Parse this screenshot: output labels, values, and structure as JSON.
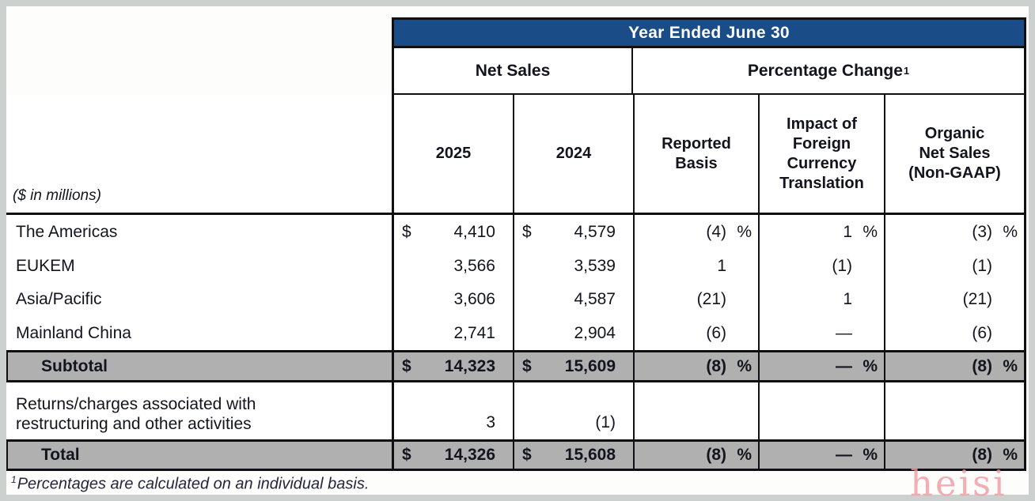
{
  "banner": "Year Ended June 30",
  "groups": {
    "net_sales": "Net Sales",
    "pct_change": "Percentage Change",
    "pct_sup": "1"
  },
  "columns": {
    "y2025": "2025",
    "y2024": "2024",
    "reported": "Reported\nBasis",
    "fx": "Impact of\nForeign\nCurrency\nTranslation",
    "organic": "Organic\nNet Sales\n(Non-GAAP)"
  },
  "units_note": "($ in millions)",
  "table": {
    "rows": [
      {
        "label": "The Americas",
        "ns2025": {
          "cur": "$",
          "val": "4,410"
        },
        "ns2024": {
          "cur": "$",
          "val": "4,579"
        },
        "rep": {
          "val": "(4)",
          "unit": "%"
        },
        "fx": {
          "val": "1",
          "unit": "%"
        },
        "org": {
          "val": "(3)",
          "unit": "%"
        }
      },
      {
        "label": "EUKEM",
        "ns2025": {
          "cur": "",
          "val": "3,566"
        },
        "ns2024": {
          "cur": "",
          "val": "3,539"
        },
        "rep": {
          "val": "1",
          "unit": ""
        },
        "fx": {
          "val": "(1)",
          "unit": ""
        },
        "org": {
          "val": "(1)",
          "unit": ""
        }
      },
      {
        "label": "Asia/Pacific",
        "ns2025": {
          "cur": "",
          "val": "3,606"
        },
        "ns2024": {
          "cur": "",
          "val": "4,587"
        },
        "rep": {
          "val": "(21)",
          "unit": ""
        },
        "fx": {
          "val": "1",
          "unit": ""
        },
        "org": {
          "val": "(21)",
          "unit": ""
        }
      },
      {
        "label": "Mainland China",
        "ns2025": {
          "cur": "",
          "val": "2,741"
        },
        "ns2024": {
          "cur": "",
          "val": "2,904"
        },
        "rep": {
          "val": "(6)",
          "unit": ""
        },
        "fx": {
          "val": "—",
          "unit": ""
        },
        "org": {
          "val": "(6)",
          "unit": ""
        }
      },
      {
        "label": "Subtotal",
        "ns2025": {
          "cur": "$",
          "val": "14,323"
        },
        "ns2024": {
          "cur": "$",
          "val": "15,609"
        },
        "rep": {
          "val": "(8)",
          "unit": "%"
        },
        "fx": {
          "val": "—",
          "unit": "%"
        },
        "org": {
          "val": "(8)",
          "unit": "%"
        }
      },
      {
        "label": "Returns/charges associated with\nrestructuring and other activities",
        "ns2025": {
          "cur": "",
          "val": "3"
        },
        "ns2024": {
          "cur": "",
          "val": "(1)"
        },
        "rep": {
          "val": "",
          "unit": ""
        },
        "fx": {
          "val": "",
          "unit": ""
        },
        "org": {
          "val": "",
          "unit": ""
        }
      },
      {
        "label": "Total",
        "ns2025": {
          "cur": "$",
          "val": "14,326"
        },
        "ns2024": {
          "cur": "$",
          "val": "15,608"
        },
        "rep": {
          "val": "(8)",
          "unit": "%"
        },
        "fx": {
          "val": "—",
          "unit": "%"
        },
        "org": {
          "val": "(8)",
          "unit": "%"
        }
      }
    ]
  },
  "footnote": {
    "sup": "1",
    "text": "Percentages are calculated on an individual basis."
  },
  "watermark": "heisi",
  "colors": {
    "header_blue": "#1a4d87",
    "row_gray": "#b0b0b0",
    "border_black": "#101014",
    "banner_text": "#ffffff",
    "watermark_pink": "#f19aa2"
  }
}
